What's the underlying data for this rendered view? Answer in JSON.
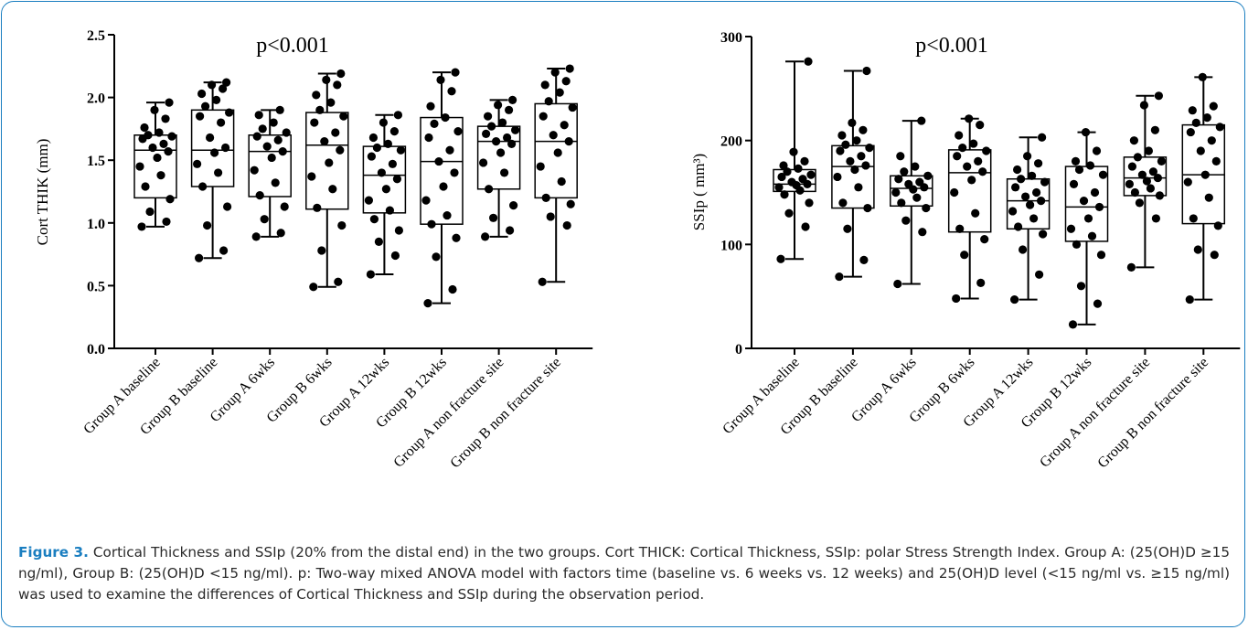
{
  "colors": {
    "frame": "#1a7ec0",
    "caption_label": "#1a7ec0",
    "points": "#000000"
  },
  "chart_data": [
    {
      "type": "boxplot",
      "annotation": "p<0.001",
      "ylabel": "Cort THIK (mm)",
      "ylim": [
        0,
        2.5
      ],
      "yticks": [
        "0.0",
        "0.5",
        "1.0",
        "1.5",
        "2.0",
        "2.5"
      ],
      "categories": [
        "Group A baseline",
        "Group B baseline",
        "Group A 6wks",
        "Group B 6wks",
        "Group A 12wks",
        "Group B 12wks",
        "Group A non fracture site",
        "Group B non fracture site"
      ],
      "boxes": [
        {
          "min": 0.97,
          "q1": 1.2,
          "median": 1.58,
          "q3": 1.7,
          "max": 1.96
        },
        {
          "min": 0.72,
          "q1": 1.29,
          "median": 1.58,
          "q3": 1.9,
          "max": 2.12
        },
        {
          "min": 0.89,
          "q1": 1.21,
          "median": 1.57,
          "q3": 1.7,
          "max": 1.9
        },
        {
          "min": 0.49,
          "q1": 1.11,
          "median": 1.62,
          "q3": 1.88,
          "max": 2.19
        },
        {
          "min": 0.59,
          "q1": 1.08,
          "median": 1.38,
          "q3": 1.61,
          "max": 1.86
        },
        {
          "min": 0.36,
          "q1": 0.99,
          "median": 1.49,
          "q3": 1.84,
          "max": 2.2
        },
        {
          "min": 0.89,
          "q1": 1.27,
          "median": 1.65,
          "q3": 1.77,
          "max": 1.98
        },
        {
          "min": 0.53,
          "q1": 1.2,
          "median": 1.65,
          "q3": 1.95,
          "max": 2.23
        }
      ],
      "points": [
        [
          0.97,
          1.01,
          1.09,
          1.19,
          1.29,
          1.38,
          1.45,
          1.52,
          1.57,
          1.6,
          1.63,
          1.67,
          1.69,
          1.7,
          1.72,
          1.76,
          1.83,
          1.9,
          1.96
        ],
        [
          0.72,
          0.78,
          0.98,
          1.13,
          1.29,
          1.4,
          1.47,
          1.56,
          1.6,
          1.68,
          1.8,
          1.85,
          1.88,
          1.93,
          1.98,
          2.03,
          2.07,
          2.1,
          2.12
        ],
        [
          0.89,
          0.92,
          1.03,
          1.13,
          1.22,
          1.32,
          1.42,
          1.52,
          1.57,
          1.61,
          1.66,
          1.69,
          1.72,
          1.75,
          1.8,
          1.86,
          1.9
        ],
        [
          0.49,
          0.53,
          0.78,
          0.98,
          1.12,
          1.27,
          1.37,
          1.48,
          1.58,
          1.65,
          1.72,
          1.8,
          1.85,
          1.9,
          1.96,
          2.02,
          2.1,
          2.14,
          2.19
        ],
        [
          0.59,
          0.74,
          0.85,
          0.94,
          1.03,
          1.1,
          1.18,
          1.27,
          1.35,
          1.4,
          1.47,
          1.53,
          1.58,
          1.6,
          1.63,
          1.68,
          1.73,
          1.8,
          1.86
        ],
        [
          0.36,
          0.47,
          0.73,
          0.88,
          0.99,
          1.06,
          1.18,
          1.29,
          1.4,
          1.49,
          1.58,
          1.68,
          1.73,
          1.79,
          1.84,
          1.93,
          2.05,
          2.14,
          2.2
        ],
        [
          0.89,
          0.94,
          1.04,
          1.14,
          1.27,
          1.4,
          1.48,
          1.56,
          1.63,
          1.65,
          1.68,
          1.71,
          1.74,
          1.77,
          1.8,
          1.85,
          1.9,
          1.94,
          1.98
        ],
        [
          0.53,
          0.98,
          1.05,
          1.15,
          1.2,
          1.33,
          1.45,
          1.56,
          1.65,
          1.7,
          1.78,
          1.85,
          1.92,
          1.97,
          2.04,
          2.1,
          2.13,
          2.2,
          2.23
        ]
      ]
    },
    {
      "type": "boxplot",
      "annotation": "p<0.001",
      "ylabel": "SSIp ( mm³)",
      "ylim": [
        0,
        300
      ],
      "yticks": [
        "0",
        "100",
        "200",
        "300"
      ],
      "categories": [
        "Group A baseline",
        "Group B baseline",
        "Group A 6wks",
        "Group B 6wks",
        "Group A 12wks",
        "Group B 12wks",
        "Group A non fracture site",
        "Group B non fracture site"
      ],
      "boxes": [
        {
          "min": 86,
          "q1": 151,
          "median": 158,
          "q3": 172,
          "max": 276
        },
        {
          "min": 69,
          "q1": 135,
          "median": 175,
          "q3": 195,
          "max": 267
        },
        {
          "min": 62,
          "q1": 137,
          "median": 154,
          "q3": 166,
          "max": 219
        },
        {
          "min": 48,
          "q1": 112,
          "median": 169,
          "q3": 191,
          "max": 221
        },
        {
          "min": 47,
          "q1": 115,
          "median": 142,
          "q3": 163,
          "max": 203
        },
        {
          "min": 23,
          "q1": 103,
          "median": 136,
          "q3": 175,
          "max": 208
        },
        {
          "min": 78,
          "q1": 147,
          "median": 164,
          "q3": 184,
          "max": 243
        },
        {
          "min": 47,
          "q1": 120,
          "median": 167,
          "q3": 215,
          "max": 261
        }
      ],
      "points": [
        [
          86,
          117,
          130,
          140,
          148,
          152,
          155,
          157,
          158,
          160,
          163,
          165,
          167,
          170,
          173,
          176,
          180,
          189,
          276
        ],
        [
          69,
          85,
          115,
          135,
          140,
          155,
          165,
          172,
          176,
          180,
          185,
          190,
          193,
          196,
          200,
          205,
          210,
          217,
          267
        ],
        [
          62,
          112,
          123,
          135,
          140,
          145,
          150,
          153,
          155,
          158,
          160,
          163,
          166,
          170,
          175,
          185,
          219
        ],
        [
          48,
          63,
          90,
          105,
          115,
          130,
          150,
          162,
          170,
          175,
          180,
          185,
          190,
          193,
          197,
          205,
          215,
          221
        ],
        [
          47,
          71,
          95,
          110,
          117,
          125,
          132,
          138,
          142,
          146,
          150,
          155,
          160,
          163,
          166,
          172,
          178,
          185,
          203
        ],
        [
          23,
          43,
          60,
          90,
          100,
          108,
          115,
          125,
          136,
          142,
          150,
          158,
          167,
          172,
          176,
          180,
          190,
          208
        ],
        [
          78,
          125,
          140,
          147,
          150,
          154,
          158,
          161,
          164,
          167,
          170,
          175,
          180,
          184,
          190,
          200,
          210,
          234,
          243
        ],
        [
          47,
          90,
          95,
          118,
          125,
          145,
          160,
          167,
          180,
          190,
          200,
          208,
          213,
          217,
          222,
          229,
          233,
          261
        ]
      ]
    }
  ],
  "caption": {
    "label": "Figure 3.",
    "text": " Cortical Thickness and SSIp (20% from the distal end) in the two groups. Cort THICK: Cortical Thickness, SSIp: polar Stress Strength Index. Group A: (25(OH)D ≥15 ng/ml), Group B: (25(OH)D <15 ng/ml). p: Two-way mixed ANOVA model with factors time (baseline vs. 6 weeks vs. 12 weeks) and 25(OH)D level (<15 ng/ml vs. ≥15 ng/ml) was used to examine the differences of Cortical Thickness and SSIp during the observation period."
  }
}
